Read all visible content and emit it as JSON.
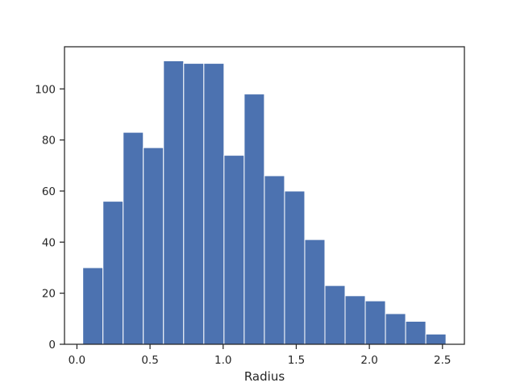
{
  "chart_data": {
    "type": "bar",
    "subtype": "histogram",
    "xlabel": "Radius",
    "ylabel": "",
    "title": "",
    "xlim": [
      -0.085,
      2.65
    ],
    "ylim": [
      0,
      116.5
    ],
    "x_ticks": [
      0.0,
      0.5,
      1.0,
      1.5,
      2.0,
      2.5
    ],
    "x_tick_labels": [
      "0.0",
      "0.5",
      "1.0",
      "1.5",
      "2.0",
      "2.5"
    ],
    "y_ticks": [
      0,
      20,
      40,
      60,
      80,
      100
    ],
    "y_tick_labels": [
      "0",
      "20",
      "40",
      "60",
      "80",
      "100"
    ],
    "grid": false,
    "bar_color": "#4c72b0",
    "edge_color": "#ffffff",
    "bins": [
      {
        "x0": 0.04,
        "x1": 0.178,
        "value": 30
      },
      {
        "x0": 0.178,
        "x1": 0.316,
        "value": 56
      },
      {
        "x0": 0.316,
        "x1": 0.454,
        "value": 83
      },
      {
        "x0": 0.454,
        "x1": 0.592,
        "value": 77
      },
      {
        "x0": 0.592,
        "x1": 0.73,
        "value": 111
      },
      {
        "x0": 0.73,
        "x1": 0.868,
        "value": 110
      },
      {
        "x0": 0.868,
        "x1": 1.006,
        "value": 110
      },
      {
        "x0": 1.006,
        "x1": 1.144,
        "value": 74
      },
      {
        "x0": 1.144,
        "x1": 1.282,
        "value": 98
      },
      {
        "x0": 1.282,
        "x1": 1.42,
        "value": 66
      },
      {
        "x0": 1.42,
        "x1": 1.558,
        "value": 60
      },
      {
        "x0": 1.558,
        "x1": 1.696,
        "value": 41
      },
      {
        "x0": 1.696,
        "x1": 1.834,
        "value": 23
      },
      {
        "x0": 1.834,
        "x1": 1.972,
        "value": 19
      },
      {
        "x0": 1.972,
        "x1": 2.11,
        "value": 17
      },
      {
        "x0": 2.11,
        "x1": 2.248,
        "value": 12
      },
      {
        "x0": 2.248,
        "x1": 2.386,
        "value": 9
      },
      {
        "x0": 2.386,
        "x1": 2.524,
        "value": 4
      }
    ]
  }
}
